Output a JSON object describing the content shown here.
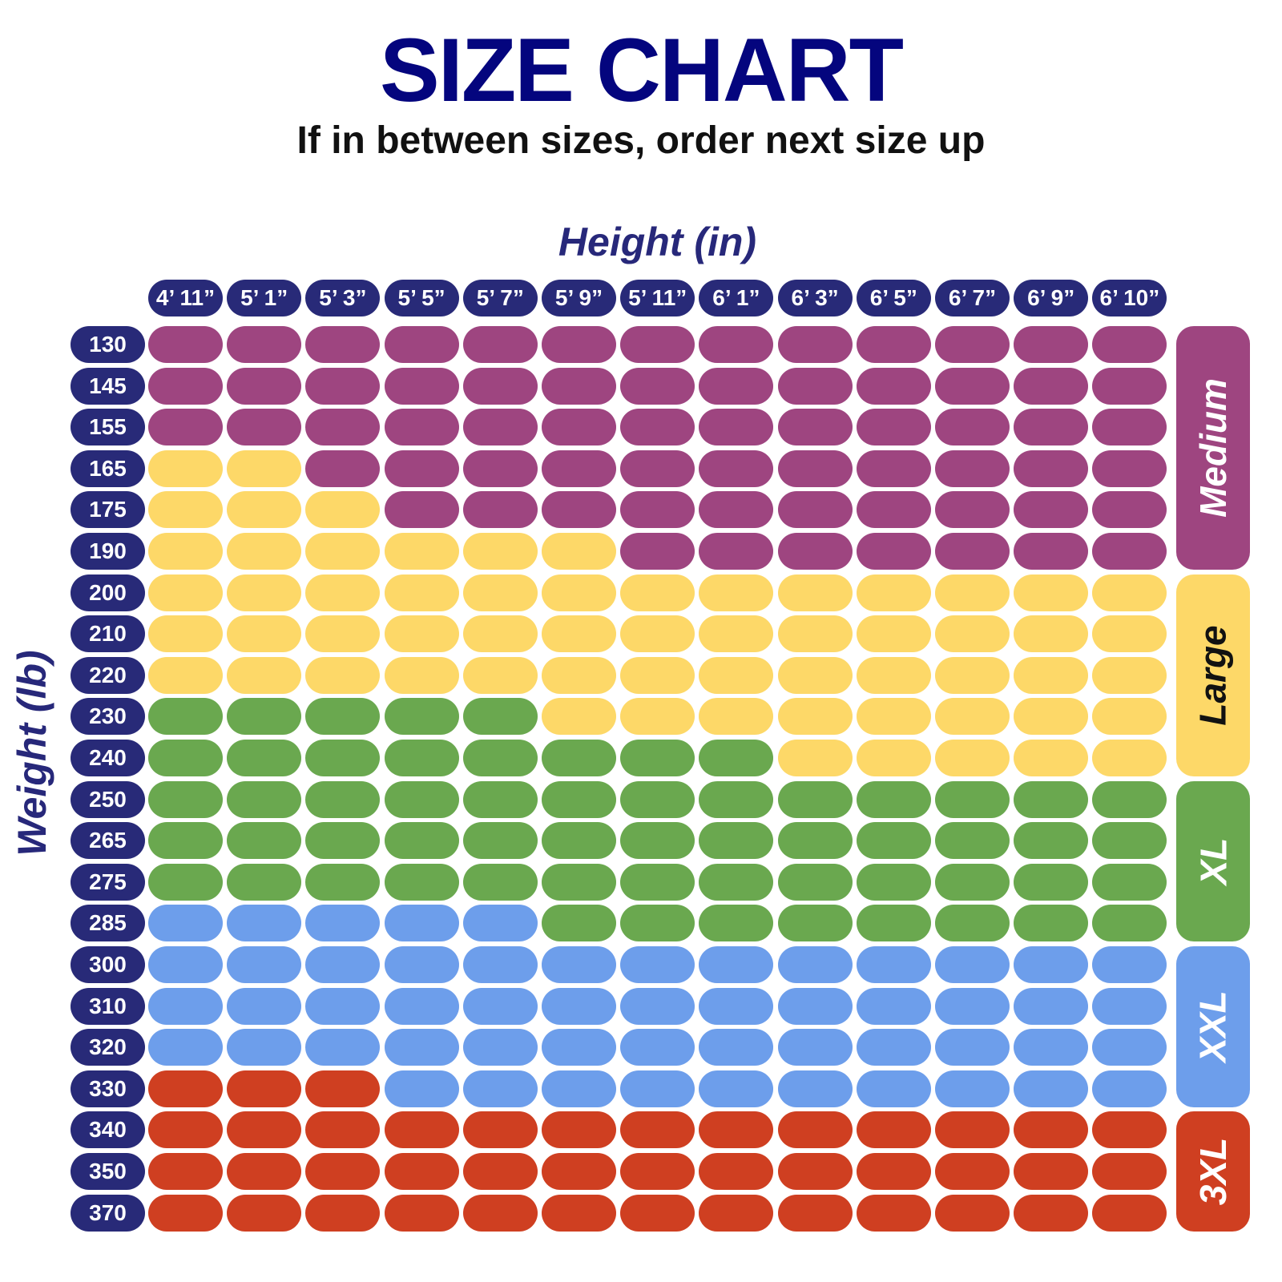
{
  "header": {
    "title": "SIZE CHART",
    "subtitle": "If in between sizes, order next size up"
  },
  "chart_data": {
    "type": "table",
    "title": "SIZE CHART",
    "subtitle": "If in between sizes, order next size up",
    "xlabel": "Height (in)",
    "ylabel": "Weight (lb)",
    "heights": [
      "4’ 11”",
      "5’ 1”",
      "5’ 3”",
      "5’ 5”",
      "5’ 7”",
      "5’ 9”",
      "5’ 11”",
      "6’ 1”",
      "6’ 3”",
      "6’ 5”",
      "6’ 7”",
      "6’ 9”",
      "6’ 10”"
    ],
    "weights": [
      "130",
      "145",
      "155",
      "165",
      "175",
      "190",
      "200",
      "210",
      "220",
      "230",
      "240",
      "250",
      "265",
      "275",
      "285",
      "300",
      "310",
      "320",
      "330",
      "340",
      "350",
      "370"
    ],
    "legend": [
      {
        "label": "Medium",
        "color": "#9e4580",
        "text_color": "#ffffff"
      },
      {
        "label": "Large",
        "color": "#fdd868",
        "text_color": "#111111"
      },
      {
        "label": "XL",
        "color": "#6aa84f",
        "text_color": "#ffffff"
      },
      {
        "label": "XXL",
        "color": "#6d9eeb",
        "text_color": "#ffffff"
      },
      {
        "label": "3XL",
        "color": "#cf3f21",
        "text_color": "#ffffff"
      }
    ],
    "axis_color": "#282a78",
    "cells": [
      [
        "Medium",
        "Medium",
        "Medium",
        "Medium",
        "Medium",
        "Medium",
        "Medium",
        "Medium",
        "Medium",
        "Medium",
        "Medium",
        "Medium",
        "Medium"
      ],
      [
        "Medium",
        "Medium",
        "Medium",
        "Medium",
        "Medium",
        "Medium",
        "Medium",
        "Medium",
        "Medium",
        "Medium",
        "Medium",
        "Medium",
        "Medium"
      ],
      [
        "Medium",
        "Medium",
        "Medium",
        "Medium",
        "Medium",
        "Medium",
        "Medium",
        "Medium",
        "Medium",
        "Medium",
        "Medium",
        "Medium",
        "Medium"
      ],
      [
        "Large",
        "Large",
        "Medium",
        "Medium",
        "Medium",
        "Medium",
        "Medium",
        "Medium",
        "Medium",
        "Medium",
        "Medium",
        "Medium",
        "Medium"
      ],
      [
        "Large",
        "Large",
        "Large",
        "Medium",
        "Medium",
        "Medium",
        "Medium",
        "Medium",
        "Medium",
        "Medium",
        "Medium",
        "Medium",
        "Medium"
      ],
      [
        "Large",
        "Large",
        "Large",
        "Large",
        "Large",
        "Large",
        "Medium",
        "Medium",
        "Medium",
        "Medium",
        "Medium",
        "Medium",
        "Medium"
      ],
      [
        "Large",
        "Large",
        "Large",
        "Large",
        "Large",
        "Large",
        "Large",
        "Large",
        "Large",
        "Large",
        "Large",
        "Large",
        "Large"
      ],
      [
        "Large",
        "Large",
        "Large",
        "Large",
        "Large",
        "Large",
        "Large",
        "Large",
        "Large",
        "Large",
        "Large",
        "Large",
        "Large"
      ],
      [
        "Large",
        "Large",
        "Large",
        "Large",
        "Large",
        "Large",
        "Large",
        "Large",
        "Large",
        "Large",
        "Large",
        "Large",
        "Large"
      ],
      [
        "XL",
        "XL",
        "XL",
        "XL",
        "XL",
        "Large",
        "Large",
        "Large",
        "Large",
        "Large",
        "Large",
        "Large",
        "Large"
      ],
      [
        "XL",
        "XL",
        "XL",
        "XL",
        "XL",
        "XL",
        "XL",
        "XL",
        "Large",
        "Large",
        "Large",
        "Large",
        "Large"
      ],
      [
        "XL",
        "XL",
        "XL",
        "XL",
        "XL",
        "XL",
        "XL",
        "XL",
        "XL",
        "XL",
        "XL",
        "XL",
        "XL"
      ],
      [
        "XL",
        "XL",
        "XL",
        "XL",
        "XL",
        "XL",
        "XL",
        "XL",
        "XL",
        "XL",
        "XL",
        "XL",
        "XL"
      ],
      [
        "XL",
        "XL",
        "XL",
        "XL",
        "XL",
        "XL",
        "XL",
        "XL",
        "XL",
        "XL",
        "XL",
        "XL",
        "XL"
      ],
      [
        "XXL",
        "XXL",
        "XXL",
        "XXL",
        "XXL",
        "XL",
        "XL",
        "XL",
        "XL",
        "XL",
        "XL",
        "XL",
        "XL"
      ],
      [
        "XXL",
        "XXL",
        "XXL",
        "XXL",
        "XXL",
        "XXL",
        "XXL",
        "XXL",
        "XXL",
        "XXL",
        "XXL",
        "XXL",
        "XXL"
      ],
      [
        "XXL",
        "XXL",
        "XXL",
        "XXL",
        "XXL",
        "XXL",
        "XXL",
        "XXL",
        "XXL",
        "XXL",
        "XXL",
        "XXL",
        "XXL"
      ],
      [
        "XXL",
        "XXL",
        "XXL",
        "XXL",
        "XXL",
        "XXL",
        "XXL",
        "XXL",
        "XXL",
        "XXL",
        "XXL",
        "XXL",
        "XXL"
      ],
      [
        "3XL",
        "3XL",
        "3XL",
        "XXL",
        "XXL",
        "XXL",
        "XXL",
        "XXL",
        "XXL",
        "XXL",
        "XXL",
        "XXL",
        "XXL"
      ],
      [
        "3XL",
        "3XL",
        "3XL",
        "3XL",
        "3XL",
        "3XL",
        "3XL",
        "3XL",
        "3XL",
        "3XL",
        "3XL",
        "3XL",
        "3XL"
      ],
      [
        "3XL",
        "3XL",
        "3XL",
        "3XL",
        "3XL",
        "3XL",
        "3XL",
        "3XL",
        "3XL",
        "3XL",
        "3XL",
        "3XL",
        "3XL"
      ],
      [
        "3XL",
        "3XL",
        "3XL",
        "3XL",
        "3XL",
        "3XL",
        "3XL",
        "3XL",
        "3XL",
        "3XL",
        "3XL",
        "3XL",
        "3XL"
      ]
    ]
  }
}
